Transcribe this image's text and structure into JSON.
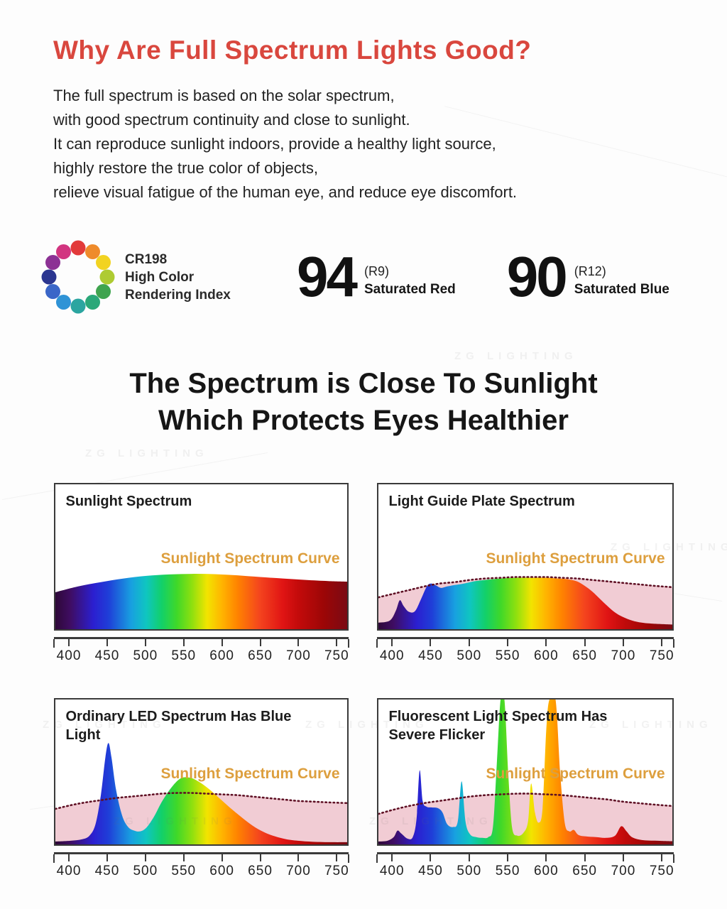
{
  "page": {
    "main_heading": "Why Are Full Spectrum Lights Good?",
    "intro_lines": [
      "The full spectrum is based on the solar spectrum,",
      "with good spectrum continuity and close to sunlight.",
      "It can reproduce sunlight indoors, provide a healthy light source,",
      "highly restore the true color of objects,",
      "relieve visual fatigue of the human eye, and reduce eye discomfort."
    ],
    "section_heading_line1": "The Spectrum is Close To Sunlight",
    "section_heading_line2": "Which Protects Eyes Healthier"
  },
  "cri": {
    "label_line1": "CR198",
    "label_line2": "High Color",
    "label_line3": "Rendering Index",
    "wheel_colors": [
      "#e23a3a",
      "#ef8b2b",
      "#f2d321",
      "#aecb32",
      "#3fa44f",
      "#2aa879",
      "#2ba5a0",
      "#2f93d6",
      "#3a66c8",
      "#2b3690",
      "#8c3194",
      "#d23580"
    ],
    "metrics": [
      {
        "value": "94",
        "ref": "(R9)",
        "caption": "Saturated Red"
      },
      {
        "value": "90",
        "ref": "(R12)",
        "caption": "Saturated Blue"
      }
    ]
  },
  "watermark": {
    "text": "ZG LIGHTING"
  },
  "colors": {
    "heading_red": "#d9473e",
    "curve_label_orange": "#dd9f3e",
    "dotted_curve": "#5f1024",
    "sunlight_fill_pink": "#f1ccd4",
    "axis_dark": "#3a3a3a",
    "spectrum_gradient": [
      [
        0,
        "#2e0838"
      ],
      [
        0.052,
        "#3f0d63"
      ],
      [
        0.13,
        "#2b1fd0"
      ],
      [
        0.182,
        "#1f3ed8"
      ],
      [
        0.26,
        "#18a0e0"
      ],
      [
        0.312,
        "#0fc6c0"
      ],
      [
        0.364,
        "#12d06a"
      ],
      [
        0.416,
        "#3fd829"
      ],
      [
        0.468,
        "#8ee00f"
      ],
      [
        0.52,
        "#f2e400"
      ],
      [
        0.571,
        "#ffb400"
      ],
      [
        0.623,
        "#ff8400"
      ],
      [
        0.701,
        "#f4441e"
      ],
      [
        0.779,
        "#e01414"
      ],
      [
        0.831,
        "#c40b0b"
      ],
      [
        0.92,
        "#9c0606"
      ],
      [
        1,
        "#7a0a14"
      ]
    ]
  },
  "chart_data": [
    {
      "type": "area",
      "title": "Sunlight Spectrum",
      "curve_label": "Sunlight Spectrum Curve",
      "x_ticks": [
        400,
        450,
        500,
        550,
        600,
        650,
        700,
        750
      ],
      "x_range_nm": [
        380,
        765
      ],
      "y_range": [
        0,
        1
      ],
      "spectrum_curve": [
        [
          380,
          0.255
        ],
        [
          410,
          0.295
        ],
        [
          440,
          0.325
        ],
        [
          470,
          0.35
        ],
        [
          500,
          0.368
        ],
        [
          530,
          0.378
        ],
        [
          560,
          0.382
        ],
        [
          590,
          0.38
        ],
        [
          620,
          0.372
        ],
        [
          650,
          0.36
        ],
        [
          680,
          0.35
        ],
        [
          710,
          0.34
        ],
        [
          740,
          0.332
        ],
        [
          765,
          0.328
        ]
      ],
      "sunlight_overlay": null
    },
    {
      "type": "area",
      "title": "Light Guide Plate Spectrum",
      "curve_label": "Sunlight Spectrum Curve",
      "x_ticks": [
        400,
        450,
        500,
        550,
        600,
        650,
        700,
        750
      ],
      "x_range_nm": [
        380,
        765
      ],
      "y_range": [
        0,
        1
      ],
      "spectrum_curve": [
        [
          380,
          0.045
        ],
        [
          395,
          0.06
        ],
        [
          403,
          0.13
        ],
        [
          408,
          0.2
        ],
        [
          413,
          0.16
        ],
        [
          420,
          0.12
        ],
        [
          428,
          0.125
        ],
        [
          436,
          0.21
        ],
        [
          444,
          0.3
        ],
        [
          450,
          0.315
        ],
        [
          456,
          0.3
        ],
        [
          462,
          0.285
        ],
        [
          470,
          0.295
        ],
        [
          480,
          0.305
        ],
        [
          492,
          0.315
        ],
        [
          505,
          0.33
        ],
        [
          520,
          0.34
        ],
        [
          540,
          0.35
        ],
        [
          560,
          0.355
        ],
        [
          580,
          0.355
        ],
        [
          600,
          0.355
        ],
        [
          615,
          0.35
        ],
        [
          628,
          0.345
        ],
        [
          640,
          0.33
        ],
        [
          650,
          0.3
        ],
        [
          660,
          0.26
        ],
        [
          670,
          0.21
        ],
        [
          680,
          0.16
        ],
        [
          690,
          0.115
        ],
        [
          700,
          0.085
        ],
        [
          712,
          0.06
        ],
        [
          725,
          0.045
        ],
        [
          740,
          0.038
        ],
        [
          765,
          0.032
        ]
      ],
      "sunlight_overlay": [
        [
          380,
          0.22
        ],
        [
          400,
          0.245
        ],
        [
          420,
          0.27
        ],
        [
          440,
          0.295
        ],
        [
          460,
          0.315
        ],
        [
          480,
          0.325
        ],
        [
          500,
          0.34
        ],
        [
          520,
          0.35
        ],
        [
          540,
          0.355
        ],
        [
          560,
          0.36
        ],
        [
          580,
          0.36
        ],
        [
          600,
          0.36
        ],
        [
          620,
          0.355
        ],
        [
          640,
          0.35
        ],
        [
          660,
          0.34
        ],
        [
          680,
          0.33
        ],
        [
          700,
          0.32
        ],
        [
          720,
          0.31
        ],
        [
          740,
          0.3
        ],
        [
          765,
          0.29
        ]
      ]
    },
    {
      "type": "area",
      "title": "Ordinary LED Spectrum Has Blue Light",
      "curve_label": "Sunlight Spectrum Curve",
      "x_ticks": [
        400,
        450,
        500,
        550,
        600,
        650,
        700,
        750
      ],
      "x_range_nm": [
        380,
        765
      ],
      "y_range": [
        0,
        1
      ],
      "spectrum_curve": [
        [
          380,
          0.02
        ],
        [
          400,
          0.025
        ],
        [
          415,
          0.035
        ],
        [
          425,
          0.06
        ],
        [
          433,
          0.14
        ],
        [
          440,
          0.34
        ],
        [
          446,
          0.6
        ],
        [
          450,
          0.7
        ],
        [
          454,
          0.6
        ],
        [
          460,
          0.38
        ],
        [
          468,
          0.2
        ],
        [
          476,
          0.12
        ],
        [
          484,
          0.095
        ],
        [
          492,
          0.09
        ],
        [
          500,
          0.115
        ],
        [
          510,
          0.19
        ],
        [
          520,
          0.29
        ],
        [
          532,
          0.385
        ],
        [
          545,
          0.455
        ],
        [
          558,
          0.46
        ],
        [
          570,
          0.43
        ],
        [
          582,
          0.385
        ],
        [
          595,
          0.325
        ],
        [
          610,
          0.255
        ],
        [
          625,
          0.19
        ],
        [
          640,
          0.13
        ],
        [
          655,
          0.085
        ],
        [
          670,
          0.055
        ],
        [
          685,
          0.035
        ],
        [
          700,
          0.025
        ],
        [
          720,
          0.018
        ],
        [
          745,
          0.015
        ],
        [
          765,
          0.015
        ]
      ],
      "sunlight_overlay": [
        [
          380,
          0.245
        ],
        [
          400,
          0.27
        ],
        [
          420,
          0.29
        ],
        [
          440,
          0.305
        ],
        [
          460,
          0.32
        ],
        [
          480,
          0.33
        ],
        [
          500,
          0.34
        ],
        [
          520,
          0.35
        ],
        [
          540,
          0.355
        ],
        [
          560,
          0.355
        ],
        [
          580,
          0.35
        ],
        [
          600,
          0.345
        ],
        [
          620,
          0.34
        ],
        [
          640,
          0.33
        ],
        [
          660,
          0.32
        ],
        [
          680,
          0.31
        ],
        [
          700,
          0.3
        ],
        [
          720,
          0.295
        ],
        [
          740,
          0.29
        ],
        [
          765,
          0.285
        ]
      ]
    },
    {
      "type": "area",
      "title": "Fluorescent Light Spectrum Has Severe Flicker",
      "curve_label": "Sunlight Spectrum Curve",
      "x_ticks": [
        400,
        450,
        500,
        550,
        600,
        650,
        700,
        750
      ],
      "x_range_nm": [
        380,
        765
      ],
      "y_range": [
        0,
        1
      ],
      "spectrum_curve": [
        [
          380,
          0.02
        ],
        [
          392,
          0.025
        ],
        [
          400,
          0.05
        ],
        [
          405,
          0.095
        ],
        [
          410,
          0.075
        ],
        [
          418,
          0.04
        ],
        [
          425,
          0.05
        ],
        [
          430,
          0.18
        ],
        [
          434,
          0.51
        ],
        [
          438,
          0.3
        ],
        [
          443,
          0.26
        ],
        [
          450,
          0.255
        ],
        [
          458,
          0.25
        ],
        [
          464,
          0.22
        ],
        [
          470,
          0.14
        ],
        [
          478,
          0.12
        ],
        [
          484,
          0.16
        ],
        [
          489,
          0.435
        ],
        [
          494,
          0.16
        ],
        [
          500,
          0.07
        ],
        [
          508,
          0.05
        ],
        [
          516,
          0.045
        ],
        [
          524,
          0.05
        ],
        [
          530,
          0.12
        ],
        [
          535,
          0.55
        ],
        [
          540,
          1.0
        ],
        [
          545,
          1.0
        ],
        [
          550,
          0.5
        ],
        [
          555,
          0.12
        ],
        [
          562,
          0.06
        ],
        [
          570,
          0.08
        ],
        [
          576,
          0.16
        ],
        [
          580,
          0.42
        ],
        [
          585,
          0.22
        ],
        [
          590,
          0.15
        ],
        [
          595,
          0.25
        ],
        [
          600,
          0.8
        ],
        [
          604,
          1.0
        ],
        [
          612,
          1.0
        ],
        [
          618,
          0.5
        ],
        [
          624,
          0.15
        ],
        [
          630,
          0.09
        ],
        [
          636,
          0.1
        ],
        [
          642,
          0.065
        ],
        [
          652,
          0.055
        ],
        [
          665,
          0.05
        ],
        [
          678,
          0.045
        ],
        [
          690,
          0.06
        ],
        [
          698,
          0.125
        ],
        [
          705,
          0.09
        ],
        [
          712,
          0.05
        ],
        [
          725,
          0.03
        ],
        [
          745,
          0.025
        ],
        [
          765,
          0.022
        ]
      ],
      "sunlight_overlay": [
        [
          380,
          0.21
        ],
        [
          400,
          0.24
        ],
        [
          420,
          0.265
        ],
        [
          440,
          0.285
        ],
        [
          460,
          0.3
        ],
        [
          480,
          0.315
        ],
        [
          500,
          0.33
        ],
        [
          520,
          0.34
        ],
        [
          540,
          0.345
        ],
        [
          560,
          0.35
        ],
        [
          580,
          0.35
        ],
        [
          600,
          0.345
        ],
        [
          620,
          0.34
        ],
        [
          640,
          0.33
        ],
        [
          660,
          0.32
        ],
        [
          680,
          0.31
        ],
        [
          700,
          0.295
        ],
        [
          720,
          0.285
        ],
        [
          740,
          0.275
        ],
        [
          765,
          0.265
        ]
      ]
    }
  ]
}
